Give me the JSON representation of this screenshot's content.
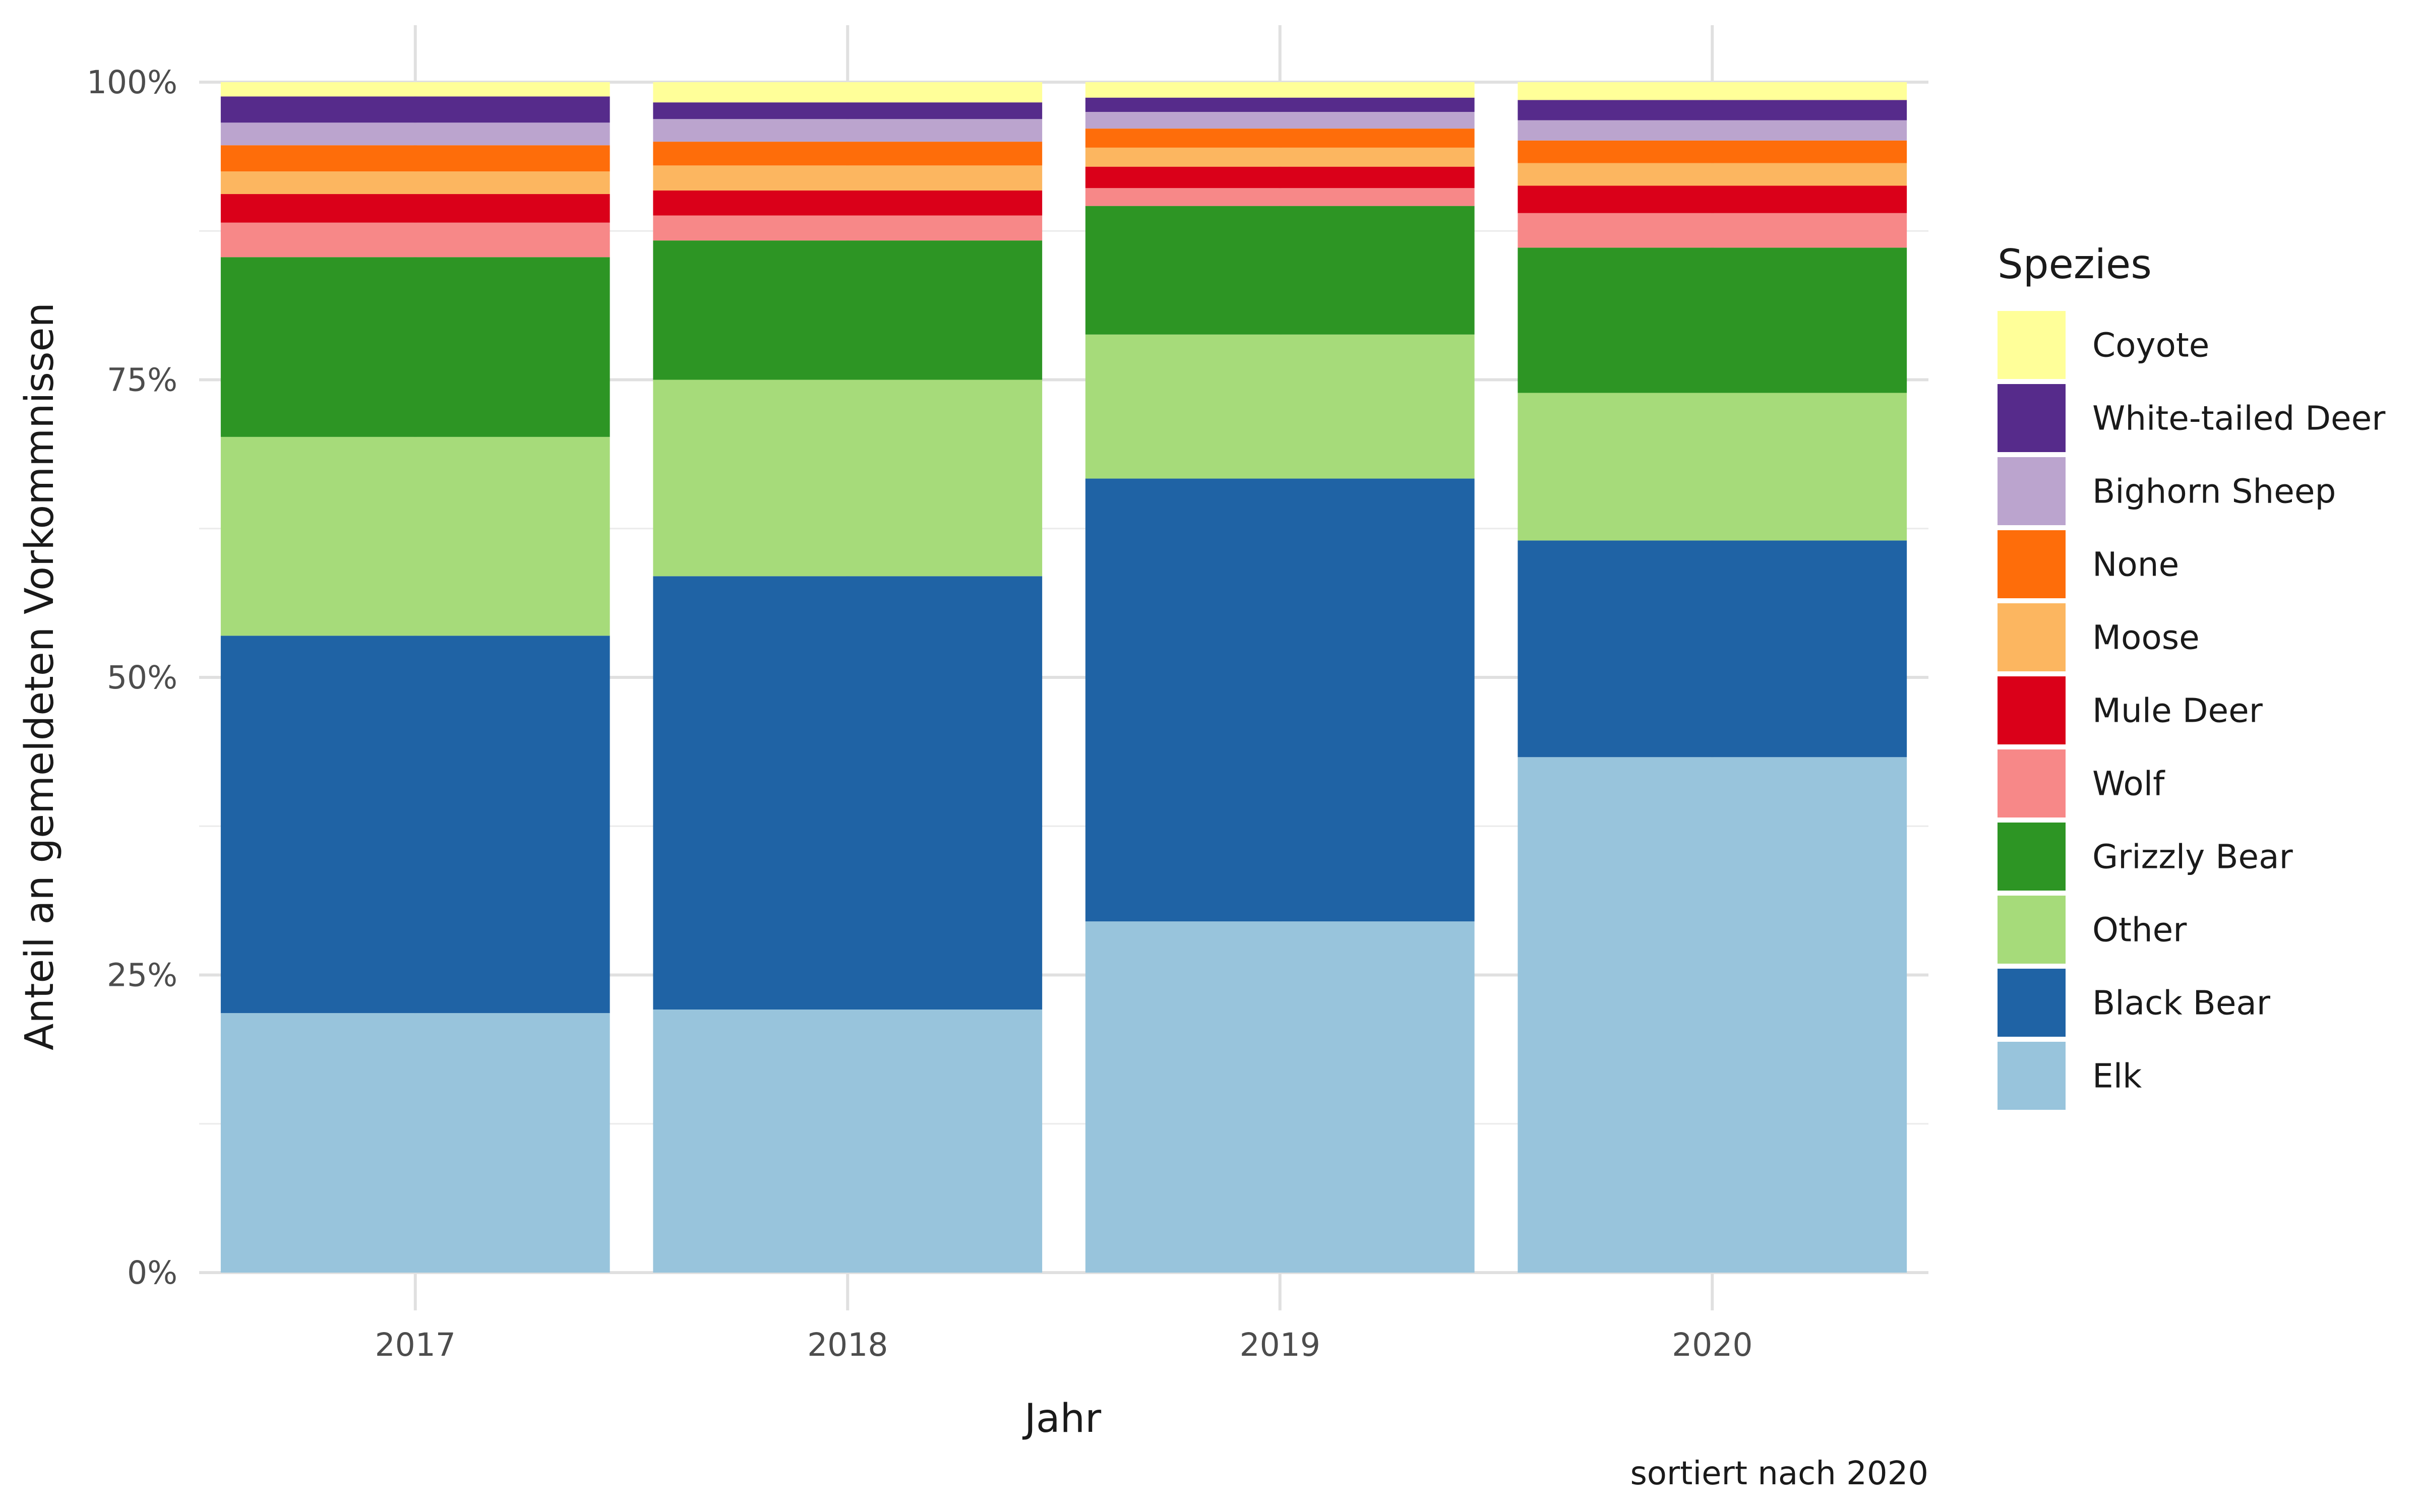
{
  "chart_data": {
    "type": "bar",
    "stacked": true,
    "normalized": true,
    "categories": [
      "2017",
      "2018",
      "2019",
      "2020"
    ],
    "xlabel": "Jahr",
    "ylabel": "Anteil an gemeldeten Vorkommnissen",
    "caption": "sortiert nach 2020",
    "legend_title": "Spezies",
    "legend_position": "right",
    "grid": true,
    "ylim": [
      0,
      1
    ],
    "y_ticks": [
      {
        "value": 0,
        "label": "0%"
      },
      {
        "value": 0.25,
        "label": "25%"
      },
      {
        "value": 0.5,
        "label": "50%"
      },
      {
        "value": 0.75,
        "label": "75%"
      },
      {
        "value": 1,
        "label": "100%"
      }
    ],
    "series": [
      {
        "name": "Elk",
        "color": "#98C4DC",
        "values": [
          0.218,
          0.221,
          0.295,
          0.433
        ]
      },
      {
        "name": "Black Bear",
        "color": "#1F63A5",
        "values": [
          0.317,
          0.364,
          0.372,
          0.182
        ]
      },
      {
        "name": "Other",
        "color": "#A6DB7A",
        "values": [
          0.167,
          0.165,
          0.121,
          0.124
        ]
      },
      {
        "name": "Grizzly Bear",
        "color": "#2D9524",
        "values": [
          0.151,
          0.117,
          0.108,
          0.122
        ]
      },
      {
        "name": "Wolf",
        "color": "#F78888",
        "values": [
          0.029,
          0.021,
          0.015,
          0.029
        ]
      },
      {
        "name": "Mule Deer",
        "color": "#DA0019",
        "values": [
          0.024,
          0.021,
          0.018,
          0.023
        ]
      },
      {
        "name": "Moose",
        "color": "#FCB660",
        "values": [
          0.019,
          0.021,
          0.016,
          0.019
        ]
      },
      {
        "name": "None",
        "color": "#FE6D0A",
        "values": [
          0.022,
          0.02,
          0.016,
          0.019
        ]
      },
      {
        "name": "Bighorn Sheep",
        "color": "#BBA4CE",
        "values": [
          0.019,
          0.019,
          0.014,
          0.017
        ]
      },
      {
        "name": "White-tailed Deer",
        "color": "#562B8B",
        "values": [
          0.022,
          0.014,
          0.012,
          0.017
        ]
      },
      {
        "name": "Coyote",
        "color": "#FFFF99",
        "values": [
          0.012,
          0.017,
          0.013,
          0.015
        ]
      }
    ]
  }
}
